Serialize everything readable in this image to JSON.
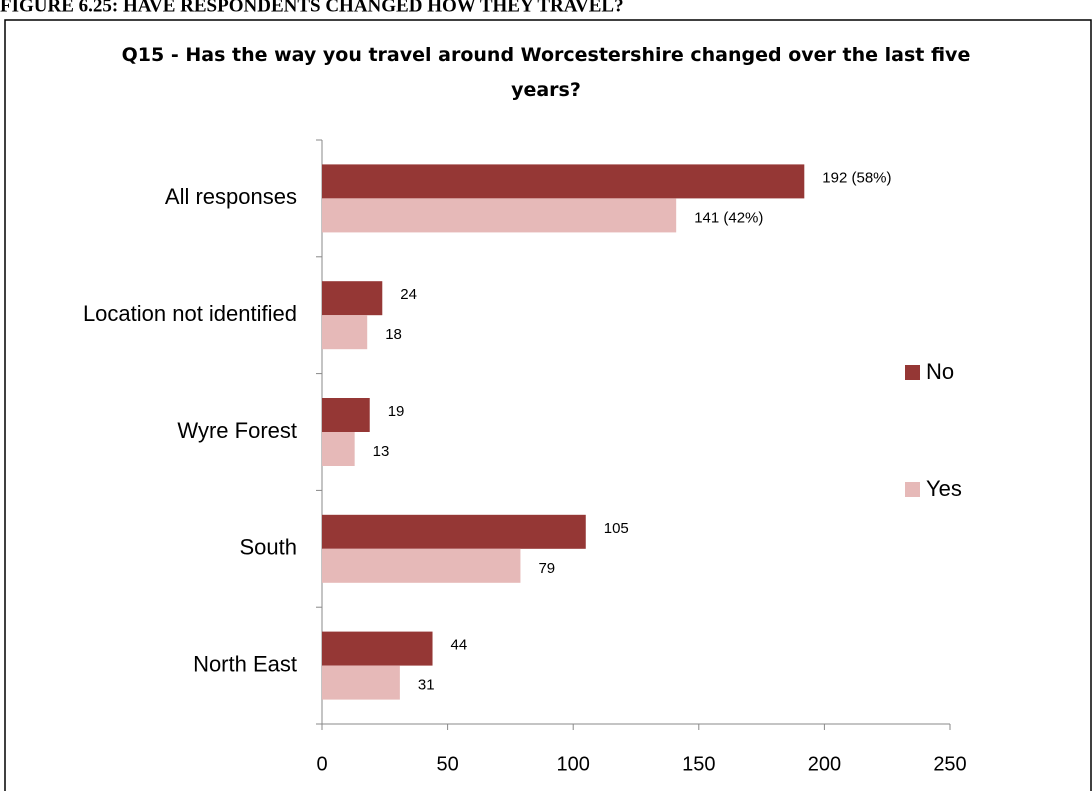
{
  "figure_caption": "FIGURE 6.25: HAVE RESPONDENTS CHANGED HOW THEY TRAVEL?",
  "chart_data": {
    "type": "hbar",
    "title": "Q15 - Has the way you travel around Worcestershire changed over the last five years?",
    "categories": [
      "All responses",
      "Location not identified",
      "Wyre Forest",
      "South",
      "North East"
    ],
    "series": [
      {
        "name": "No",
        "color": "#953735",
        "values": [
          192,
          24,
          19,
          105,
          44
        ],
        "value_labels": [
          "192 (58%)",
          "24",
          "19",
          "105",
          "44"
        ]
      },
      {
        "name": "Yes",
        "color": "#e6b9b8",
        "values": [
          141,
          18,
          13,
          79,
          31
        ],
        "value_labels": [
          "141 (42%)",
          "18",
          "13",
          "79",
          "31"
        ]
      }
    ],
    "xlim": [
      0,
      250
    ],
    "xticks": [
      0,
      50,
      100,
      150,
      200,
      250
    ],
    "legend": "right"
  }
}
